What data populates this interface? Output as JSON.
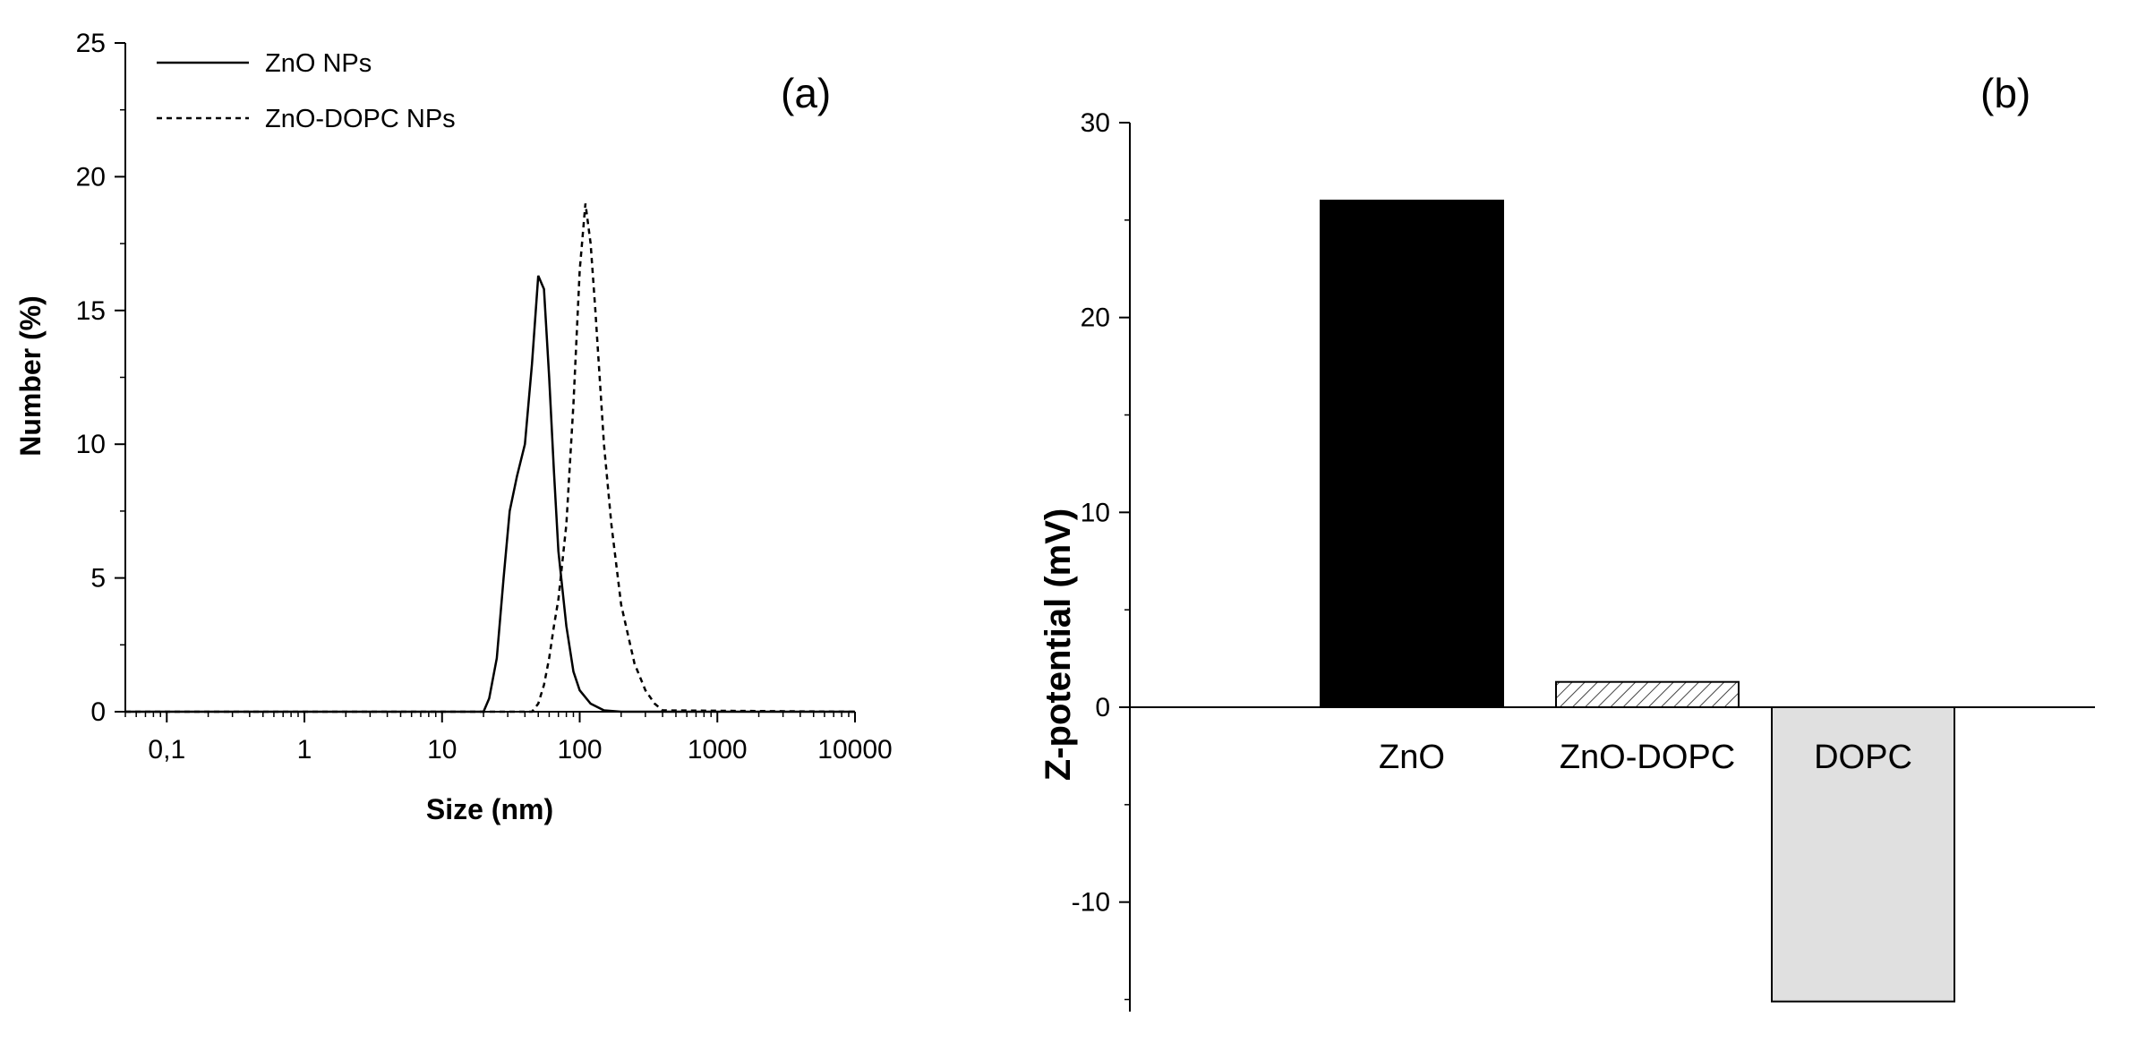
{
  "chart_data": [
    {
      "panel": "(a)",
      "type": "line",
      "xlabel": "Size (nm)",
      "ylabel": "Number (%)",
      "xscale": "log",
      "xlim": [
        0.05,
        10000
      ],
      "ylim": [
        0,
        25
      ],
      "xticks": [
        0.1,
        1,
        10,
        100,
        1000,
        10000
      ],
      "xtick_labels": [
        "0,1",
        "1",
        "10",
        "100",
        "1000",
        "10000"
      ],
      "yticks": [
        0,
        5,
        10,
        15,
        20,
        25
      ],
      "ytick_labels": [
        "0",
        "5",
        "10",
        "15",
        "20",
        "25"
      ],
      "grid": false,
      "legend": "top-left",
      "series": [
        {
          "name": "ZnO NPs",
          "style": "solid",
          "x": [
            0.05,
            20,
            22,
            25,
            28,
            31,
            35,
            40,
            45,
            50,
            55,
            60,
            65,
            70,
            80,
            90,
            100,
            120,
            150,
            200,
            10000
          ],
          "y": [
            0,
            0,
            0.5,
            2,
            5,
            7.5,
            8.8,
            10,
            13,
            16.3,
            15.8,
            12.5,
            9,
            6,
            3.2,
            1.5,
            0.8,
            0.3,
            0.05,
            0,
            0
          ]
        },
        {
          "name": "ZnO-DOPC NPs",
          "style": "dashed",
          "x": [
            0.05,
            45,
            50,
            55,
            60,
            65,
            70,
            80,
            90,
            100,
            110,
            120,
            130,
            150,
            170,
            200,
            250,
            300,
            350,
            400,
            10000
          ],
          "y": [
            0,
            0,
            0.3,
            1,
            2,
            3.2,
            4.2,
            7,
            11.5,
            16.5,
            19,
            17.5,
            15,
            10,
            7,
            4,
            1.8,
            0.8,
            0.3,
            0.05,
            0
          ]
        }
      ]
    },
    {
      "panel": "(b)",
      "type": "bar",
      "ylabel": "Z-potential (mV)",
      "ylim": [
        -15.3,
        30
      ],
      "yticks": [
        -10,
        0,
        10,
        20,
        30
      ],
      "ytick_labels": [
        "-10",
        "0",
        "10",
        "20",
        "30"
      ],
      "grid": false,
      "categories": [
        "ZnO",
        "ZnO-DOPC",
        "DOPC"
      ],
      "values": [
        26,
        1.3,
        -15.1
      ],
      "colors": [
        "#000000",
        "#ffffff",
        "#e0e0e0"
      ],
      "patterns": [
        "solid",
        "hatch",
        "solid"
      ]
    }
  ]
}
